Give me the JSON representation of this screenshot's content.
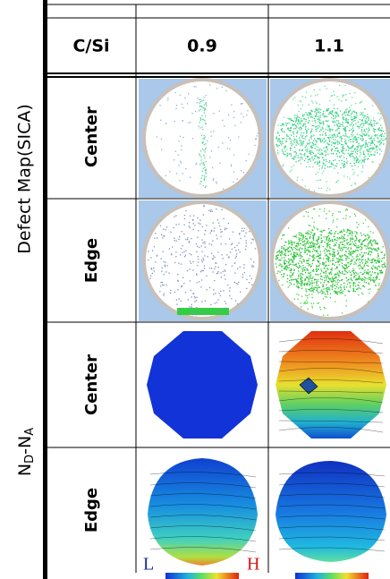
{
  "header": {
    "corner": "C/Si",
    "columns": [
      "0.9",
      "1.1"
    ]
  },
  "groups": [
    {
      "label": "Defect Map(SICA)",
      "rows": [
        "Center",
        "Edge"
      ]
    },
    {
      "label": {
        "n1": "N",
        "s1": "D",
        "mid": "-N",
        "s2": "A"
      },
      "rows": [
        "Center",
        "Edge"
      ]
    }
  ],
  "scale": {
    "low": "L",
    "high": "H"
  }
}
